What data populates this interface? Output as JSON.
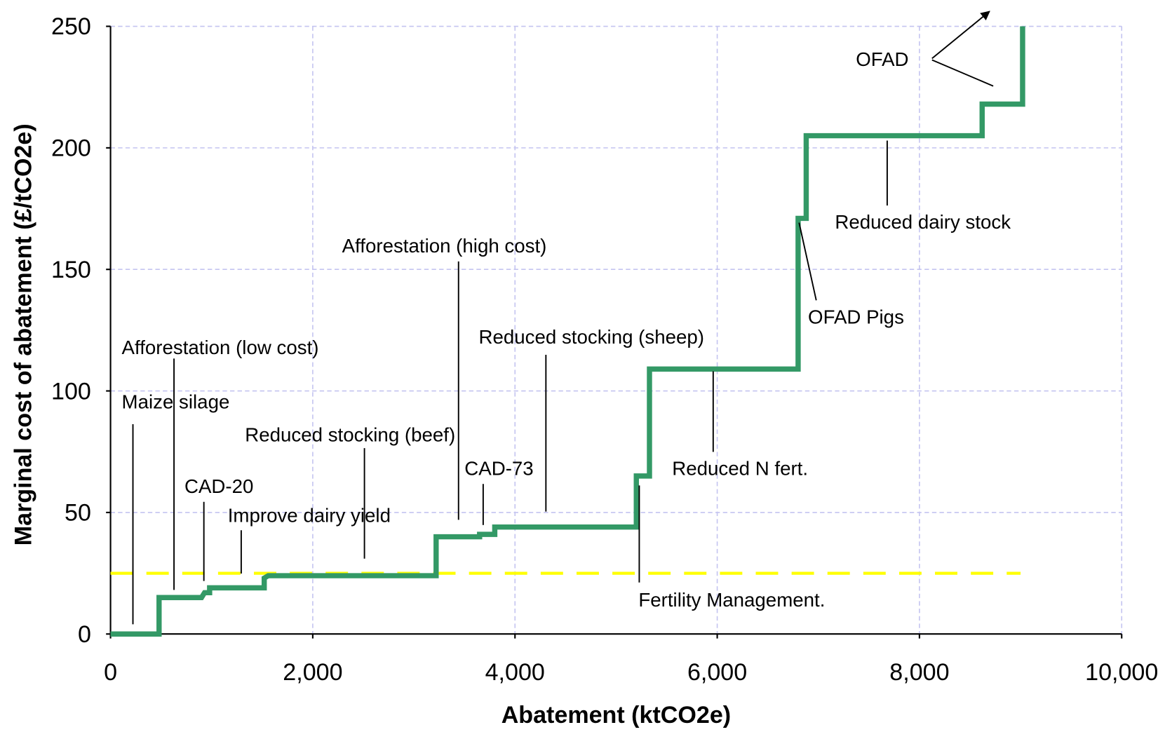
{
  "chart_data": {
    "type": "line",
    "x_label": "Abatement (ktCO2e)",
    "y_label": "Marginal cost of abatement (£/tCO2e)",
    "x": [
      0,
      480,
      480,
      900,
      930,
      980,
      980,
      1520,
      1520,
      1560,
      3220,
      3220,
      3650,
      3650,
      3800,
      3800,
      5200,
      5200,
      5330,
      5330,
      6800,
      6800,
      6880,
      6880,
      8620,
      8620,
      9020,
      9020
    ],
    "values": [
      0,
      0,
      15,
      15,
      17,
      17,
      19,
      19,
      23,
      24,
      24,
      40,
      40,
      41,
      41,
      44,
      44,
      65,
      65,
      109,
      109,
      171,
      171,
      205,
      205,
      218,
      218,
      250
    ],
    "color": "#339966",
    "threshold": {
      "x": [
        0,
        9000
      ],
      "values": [
        25,
        25
      ],
      "color": "#ffff00"
    },
    "xlim": [
      0,
      10000
    ],
    "ylim": [
      0,
      250
    ],
    "xticks": [
      0,
      {
        "value": 2000,
        "label": "2,000"
      },
      {
        "value": 4000,
        "label": "4,000"
      },
      {
        "value": 6000,
        "label": "6,000"
      },
      {
        "value": 8000,
        "label": "8,000"
      },
      {
        "value": 10000,
        "label": "10,000"
      }
    ],
    "yticks": [
      0,
      50,
      100,
      150,
      200,
      250
    ],
    "grid": true,
    "annotations": [
      "Maize silage",
      "Afforestation (low  cost)",
      "CAD-20",
      "Improve dairy yield",
      "Reduced stocking (beef)",
      "Afforestation (high cost)",
      "CAD-73",
      "Reduced stocking (sheep)",
      "Fertility Management.",
      "Reduced N fert.",
      "OFAD Pigs",
      "Reduced dairy stock",
      "OFAD"
    ]
  }
}
